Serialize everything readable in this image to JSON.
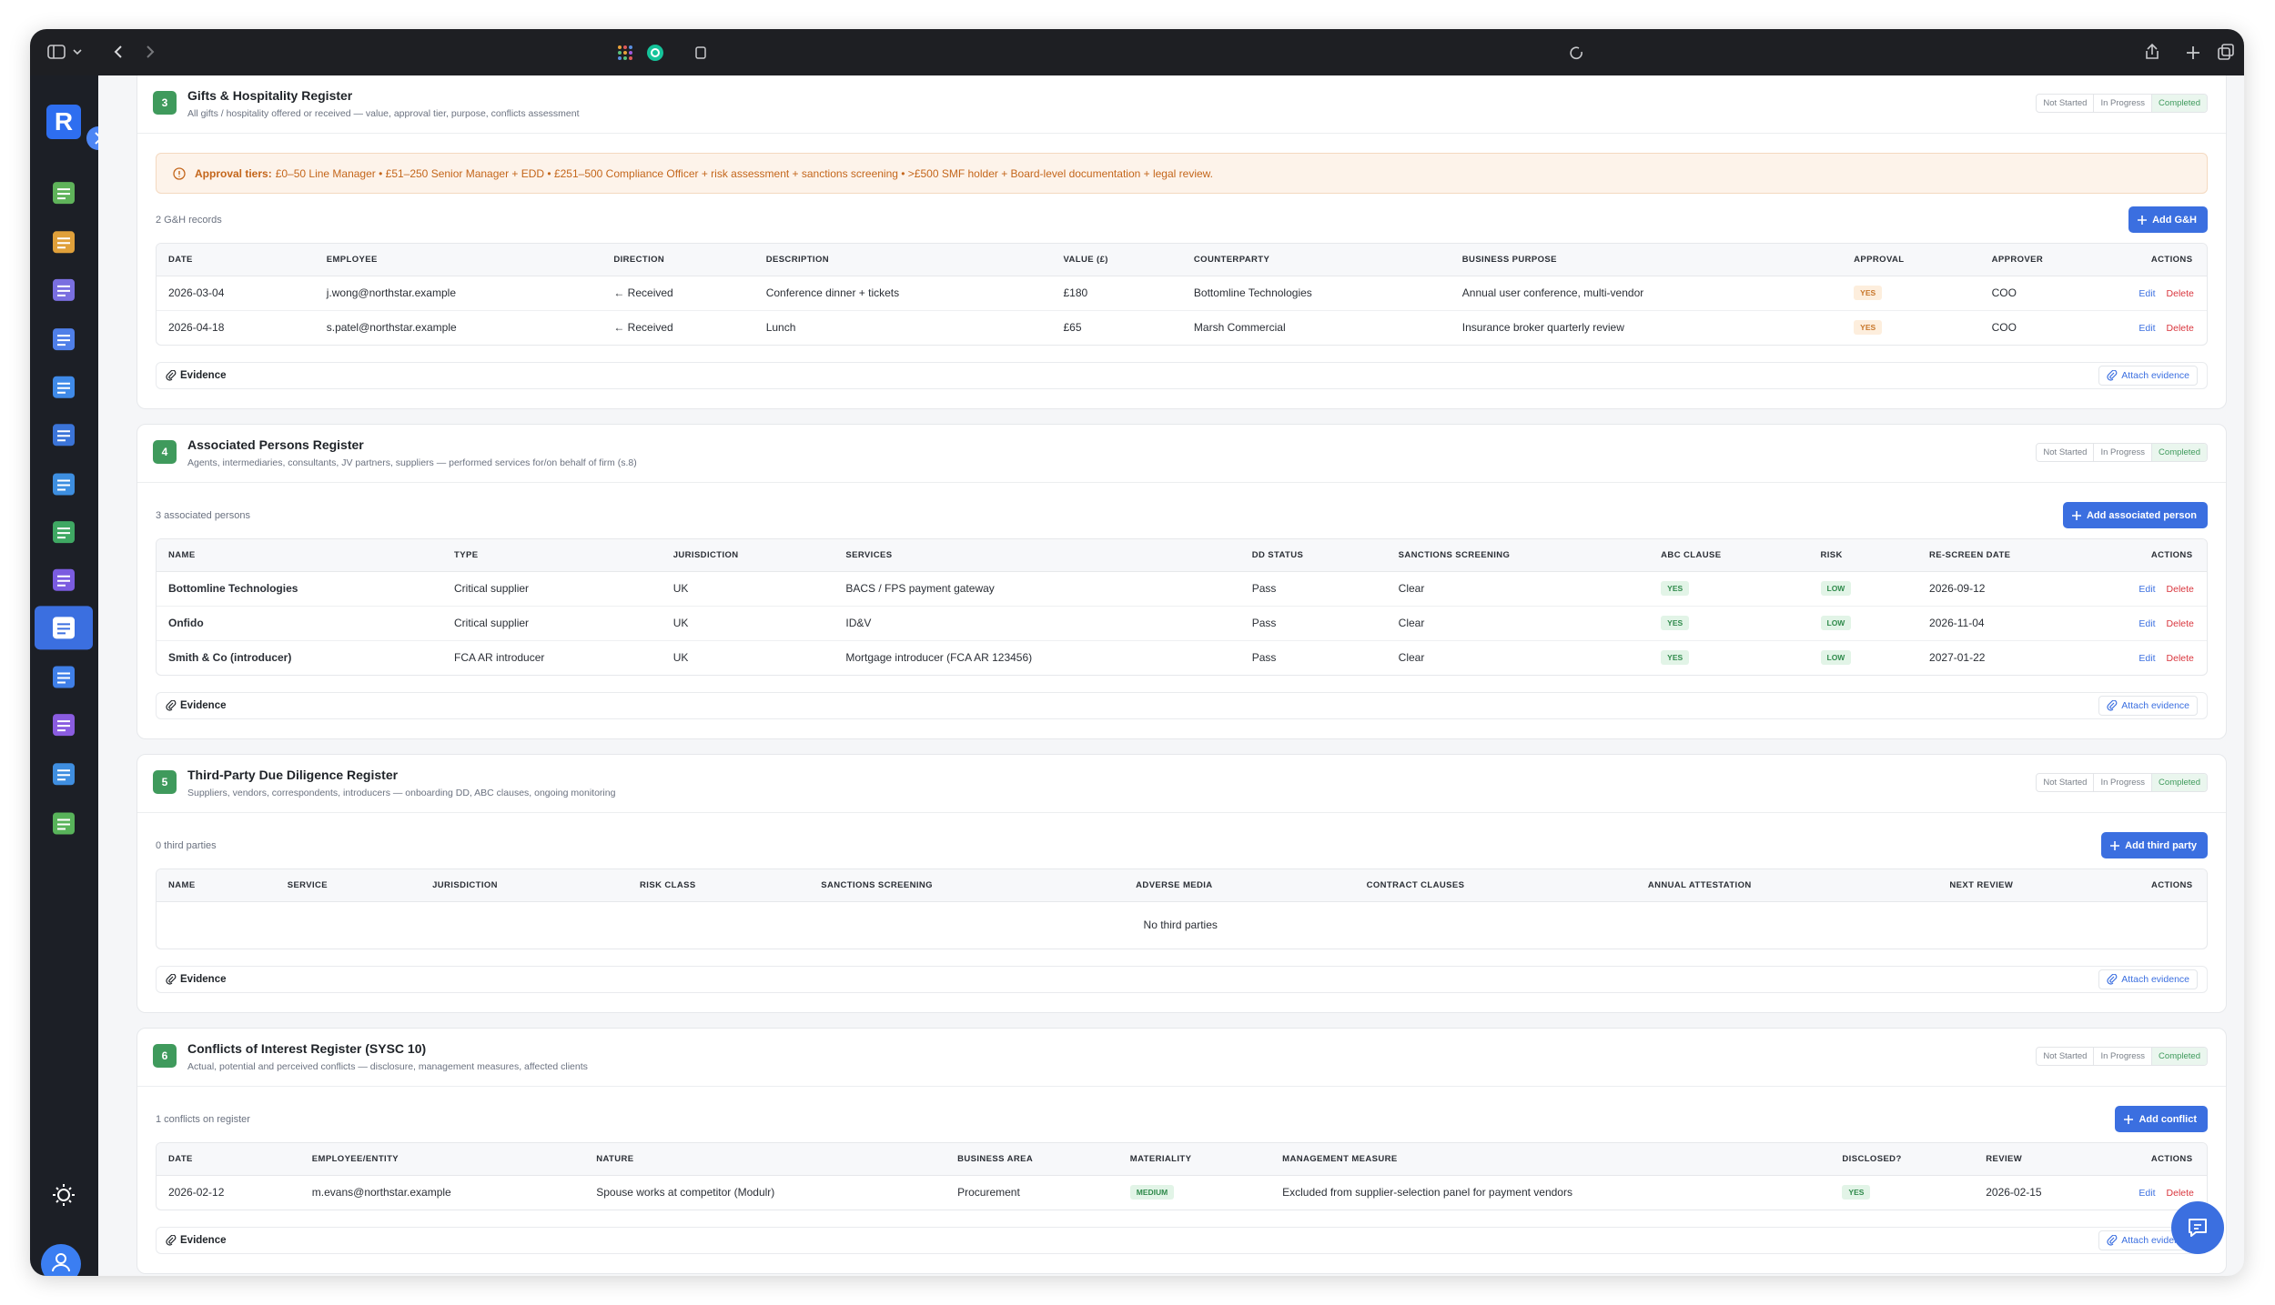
{
  "sidebar": {
    "logo": "R"
  },
  "sections": [
    {
      "number": "3",
      "title": "Gifts & Hospitality Register",
      "subtitle": "All gifts / hospitality offered or received — value, approval tier, purpose, conflicts assessment",
      "status_options": [
        "Not Started",
        "In Progress",
        "Completed"
      ],
      "active_status": 2,
      "notice": {
        "label": "Approval tiers:",
        "text": "£0–50 Line Manager • £51–250 Senior Manager + EDD • £251–500 Compliance Officer + risk assessment + sanctions screening • >£500 SMF holder + Board-level documentation + legal review."
      },
      "count_label": "2 G&H records",
      "add_button": "Add G&H",
      "table": {
        "columns": [
          "DATE",
          "EMPLOYEE",
          "DIRECTION",
          "DESCRIPTION",
          "VALUE (£)",
          "COUNTERPARTY",
          "BUSINESS PURPOSE",
          "APPROVAL",
          "APPROVER",
          "ACTIONS"
        ],
        "bold_first_column": false,
        "rows": [
          {
            "cells": [
              "2026-03-04",
              "j.wong@northstar.example",
              "← Received",
              "Conference dinner + tickets",
              "£180",
              "Bottomline Technologies",
              "Annual user conference, multi-vendor",
              {
                "text": "YES",
                "tone": "amber"
              },
              "COO"
            ],
            "actions": [
              "Edit",
              "Delete"
            ]
          },
          {
            "cells": [
              "2026-04-18",
              "s.patel@northstar.example",
              "← Received",
              "Lunch",
              "£65",
              "Marsh Commercial",
              "Insurance broker quarterly review",
              {
                "text": "YES",
                "tone": "amber"
              },
              "COO"
            ],
            "actions": [
              "Edit",
              "Delete"
            ]
          }
        ]
      },
      "evidence_label": "Evidence",
      "attach_label": "Attach evidence"
    },
    {
      "number": "4",
      "title": "Associated Persons Register",
      "subtitle": "Agents, intermediaries, consultants, JV partners, suppliers — performed services for/on behalf of firm (s.8)",
      "status_options": [
        "Not Started",
        "In Progress",
        "Completed"
      ],
      "active_status": 2,
      "count_label": "3 associated persons",
      "add_button": "Add associated person",
      "table": {
        "columns": [
          "NAME",
          "TYPE",
          "JURISDICTION",
          "SERVICES",
          "DD STATUS",
          "SANCTIONS SCREENING",
          "ABC CLAUSE",
          "RISK",
          "RE-SCREEN DATE",
          "ACTIONS"
        ],
        "bold_first_column": true,
        "rows": [
          {
            "cells": [
              "Bottomline Technologies",
              "Critical supplier",
              "UK",
              "BACS / FPS payment gateway",
              "Pass",
              "Clear",
              {
                "text": "YES",
                "tone": "green"
              },
              {
                "text": "LOW",
                "tone": "green"
              },
              "2026-09-12"
            ],
            "actions": [
              "Edit",
              "Delete"
            ]
          },
          {
            "cells": [
              "Onfido",
              "Critical supplier",
              "UK",
              "ID&V",
              "Pass",
              "Clear",
              {
                "text": "YES",
                "tone": "green"
              },
              {
                "text": "LOW",
                "tone": "green"
              },
              "2026-11-04"
            ],
            "actions": [
              "Edit",
              "Delete"
            ]
          },
          {
            "cells": [
              "Smith & Co (introducer)",
              "FCA AR introducer",
              "UK",
              "Mortgage introducer (FCA AR 123456)",
              "Pass",
              "Clear",
              {
                "text": "YES",
                "tone": "green"
              },
              {
                "text": "LOW",
                "tone": "green"
              },
              "2027-01-22"
            ],
            "actions": [
              "Edit",
              "Delete"
            ]
          }
        ]
      },
      "evidence_label": "Evidence",
      "attach_label": "Attach evidence"
    },
    {
      "number": "5",
      "title": "Third-Party Due Diligence Register",
      "subtitle": "Suppliers, vendors, correspondents, introducers — onboarding DD, ABC clauses, ongoing monitoring",
      "status_options": [
        "Not Started",
        "In Progress",
        "Completed"
      ],
      "active_status": 2,
      "count_label": "0 third parties",
      "add_button": "Add third party",
      "table": {
        "columns": [
          "NAME",
          "SERVICE",
          "JURISDICTION",
          "RISK CLASS",
          "SANCTIONS SCREENING",
          "ADVERSE MEDIA",
          "CONTRACT CLAUSES",
          "ANNUAL ATTESTATION",
          "NEXT REVIEW",
          "ACTIONS"
        ],
        "bold_first_column": false,
        "rows": [],
        "empty_text": "No third parties"
      },
      "evidence_label": "Evidence",
      "attach_label": "Attach evidence"
    },
    {
      "number": "6",
      "title": "Conflicts of Interest Register (SYSC 10)",
      "subtitle": "Actual, potential and perceived conflicts — disclosure, management measures, affected clients",
      "status_options": [
        "Not Started",
        "In Progress",
        "Completed"
      ],
      "active_status": 2,
      "count_label": "1 conflicts on register",
      "add_button": "Add conflict",
      "table": {
        "columns": [
          "DATE",
          "EMPLOYEE/ENTITY",
          "NATURE",
          "BUSINESS AREA",
          "MATERIALITY",
          "MANAGEMENT MEASURE",
          "DISCLOSED?",
          "REVIEW",
          "ACTIONS"
        ],
        "bold_first_column": false,
        "rows": [
          {
            "cells": [
              "2026-02-12",
              "m.evans@northstar.example",
              "Spouse works at competitor (Modulr)",
              "Procurement",
              {
                "text": "MEDIUM",
                "tone": "green"
              },
              "Excluded from supplier-selection panel for payment vendors",
              {
                "text": "YES",
                "tone": "green"
              },
              "2026-02-15"
            ],
            "actions": [
              "Edit",
              "Delete"
            ]
          }
        ]
      },
      "evidence_label": "Evidence",
      "attach_label": "Attach evidence"
    }
  ]
}
